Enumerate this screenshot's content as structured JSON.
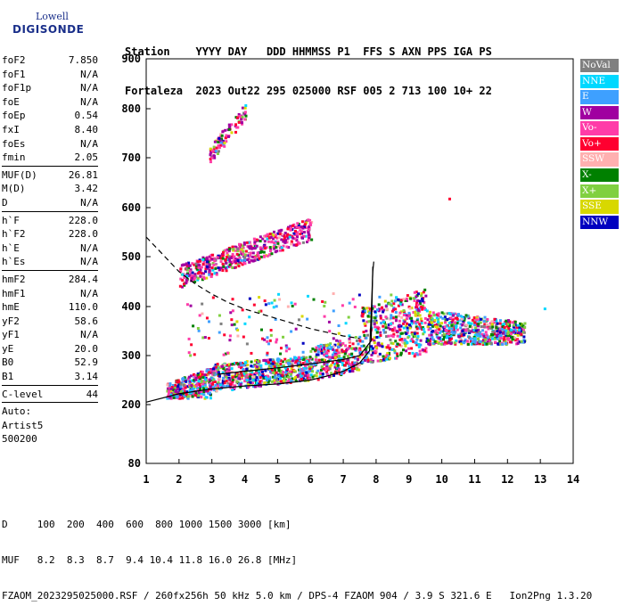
{
  "logo": {
    "line1": "Lowell",
    "line2": "DIGISONDE"
  },
  "header": {
    "line1": "Station    YYYY DAY   DDD HHMMSS P1  FFS S AXN PPS IGA PS",
    "line2": "Fortaleza  2023 Out22 295 025000 RSF 005 2 713 100 10+ 22"
  },
  "params": [
    {
      "label": "foF2",
      "value": "7.850"
    },
    {
      "label": "foF1",
      "value": "N/A"
    },
    {
      "label": "foF1p",
      "value": "N/A"
    },
    {
      "label": "foE",
      "value": "N/A"
    },
    {
      "label": "foEp",
      "value": "0.54"
    },
    {
      "label": "fxI",
      "value": "8.40"
    },
    {
      "label": "foEs",
      "value": "N/A"
    },
    {
      "label": "fmin",
      "value": "2.05"
    },
    {
      "sep": true
    },
    {
      "label": "MUF(D)",
      "value": "26.81"
    },
    {
      "label": "M(D)",
      "value": "3.42"
    },
    {
      "label": "D",
      "value": "N/A"
    },
    {
      "sep": true
    },
    {
      "label": "h`F",
      "value": "228.0"
    },
    {
      "label": "h`F2",
      "value": "228.0"
    },
    {
      "label": "h`E",
      "value": "N/A"
    },
    {
      "label": "h`Es",
      "value": "N/A"
    },
    {
      "sep": true
    },
    {
      "label": "hmF2",
      "value": "284.4"
    },
    {
      "label": "hmF1",
      "value": "N/A"
    },
    {
      "label": "hmE",
      "value": "110.0"
    },
    {
      "label": "yF2",
      "value": "58.6"
    },
    {
      "label": "yF1",
      "value": "N/A"
    },
    {
      "label": "yE",
      "value": "20.0"
    },
    {
      "label": "B0",
      "value": "52.9"
    },
    {
      "label": "B1",
      "value": "3.14"
    },
    {
      "sep": true
    },
    {
      "label": "C-level",
      "value": "44"
    },
    {
      "sep": true
    },
    {
      "text": "Auto:"
    },
    {
      "text": "Artist5"
    },
    {
      "text": "500200"
    }
  ],
  "legend": [
    {
      "label": "NoVal",
      "color": "#808080"
    },
    {
      "label": "NNE",
      "color": "#00d8ff"
    },
    {
      "label": "E",
      "color": "#3ea0ff"
    },
    {
      "label": "W",
      "color": "#a000a0"
    },
    {
      "label": "Vo-",
      "color": "#ff3ca8"
    },
    {
      "label": "Vo+",
      "color": "#ff0030"
    },
    {
      "label": "SSW",
      "color": "#ffb0b0"
    },
    {
      "label": "X-",
      "color": "#008000"
    },
    {
      "label": "X+",
      "color": "#80d040"
    },
    {
      "label": "SSE",
      "color": "#d8d800"
    },
    {
      "label": "NNW",
      "color": "#0000c0"
    }
  ],
  "bottom": {
    "line1": "D     100  200  400  600  800 1000 1500 3000 [km]",
    "line2": "MUF   8.2  8.3  8.7  9.4 10.4 11.8 16.0 26.8 [MHz]",
    "line3": "FZAOM_2023295025000.RSF / 260fx256h 50 kHz 5.0 km / DPS-4 FZAOM 904 / 3.9 S 321.6 E   Ion2Png 1.3.20"
  },
  "chart_data": {
    "type": "scatter",
    "xlim": [
      1,
      14
    ],
    "ylim": [
      80,
      900
    ],
    "x_ticks": [
      "1",
      "2",
      "3",
      "4",
      "5",
      "6",
      "7",
      "8",
      "9",
      "10",
      "11",
      "12",
      "13",
      "14"
    ],
    "y_ticks": [
      "80",
      "200",
      "300",
      "400",
      "500",
      "600",
      "700",
      "800",
      "900"
    ],
    "y_tick_values": [
      80,
      200,
      300,
      400,
      500,
      600,
      700,
      800,
      900
    ],
    "grid": false,
    "legend_position": "right",
    "clusters": [
      {
        "name": "O-trace 1st hop",
        "x_range": [
          1.6,
          12.5
        ],
        "y_min": [
          215,
          290
        ],
        "y_max": [
          240,
          450
        ],
        "density": "high"
      },
      {
        "name": "2nd hop",
        "x_range": [
          2.0,
          6.0
        ],
        "y_range": [
          440,
          580
        ],
        "density": "medium"
      },
      {
        "name": "3rd hop",
        "x_range": [
          2.9,
          4.0
        ],
        "y_range": [
          690,
          815
        ],
        "density": "low"
      }
    ],
    "curves": [
      {
        "name": "virtual-height-profile",
        "style": "solid",
        "points": [
          [
            1,
            205
          ],
          [
            2,
            222
          ],
          [
            3,
            232
          ],
          [
            4,
            238
          ],
          [
            5,
            242
          ],
          [
            6,
            250
          ],
          [
            6.5,
            258
          ],
          [
            7,
            268
          ],
          [
            7.5,
            285
          ],
          [
            7.8,
            310
          ],
          [
            7.85,
            385
          ],
          [
            7.9,
            470
          ],
          [
            7.93,
            490
          ]
        ]
      },
      {
        "name": "true-height-profile",
        "style": "solid",
        "points": [
          [
            3.2,
            262
          ],
          [
            4,
            268
          ],
          [
            5,
            275
          ],
          [
            6,
            283
          ],
          [
            7,
            292
          ],
          [
            7.5,
            300
          ],
          [
            7.85,
            330
          ],
          [
            7.9,
            480
          ]
        ]
      },
      {
        "name": "muf-curve",
        "style": "dashed",
        "points": [
          [
            1,
            540
          ],
          [
            1.5,
            505
          ],
          [
            2,
            470
          ],
          [
            2.5,
            445
          ],
          [
            3,
            425
          ],
          [
            3.5,
            408
          ],
          [
            4,
            395
          ],
          [
            4.5,
            385
          ],
          [
            5,
            375
          ],
          [
            6,
            355
          ],
          [
            7,
            340
          ],
          [
            7.5,
            335
          ]
        ]
      }
    ],
    "isolated_points": [
      {
        "x": 10.2,
        "y": 620
      },
      {
        "x": 13.1,
        "y": 398
      }
    ]
  }
}
